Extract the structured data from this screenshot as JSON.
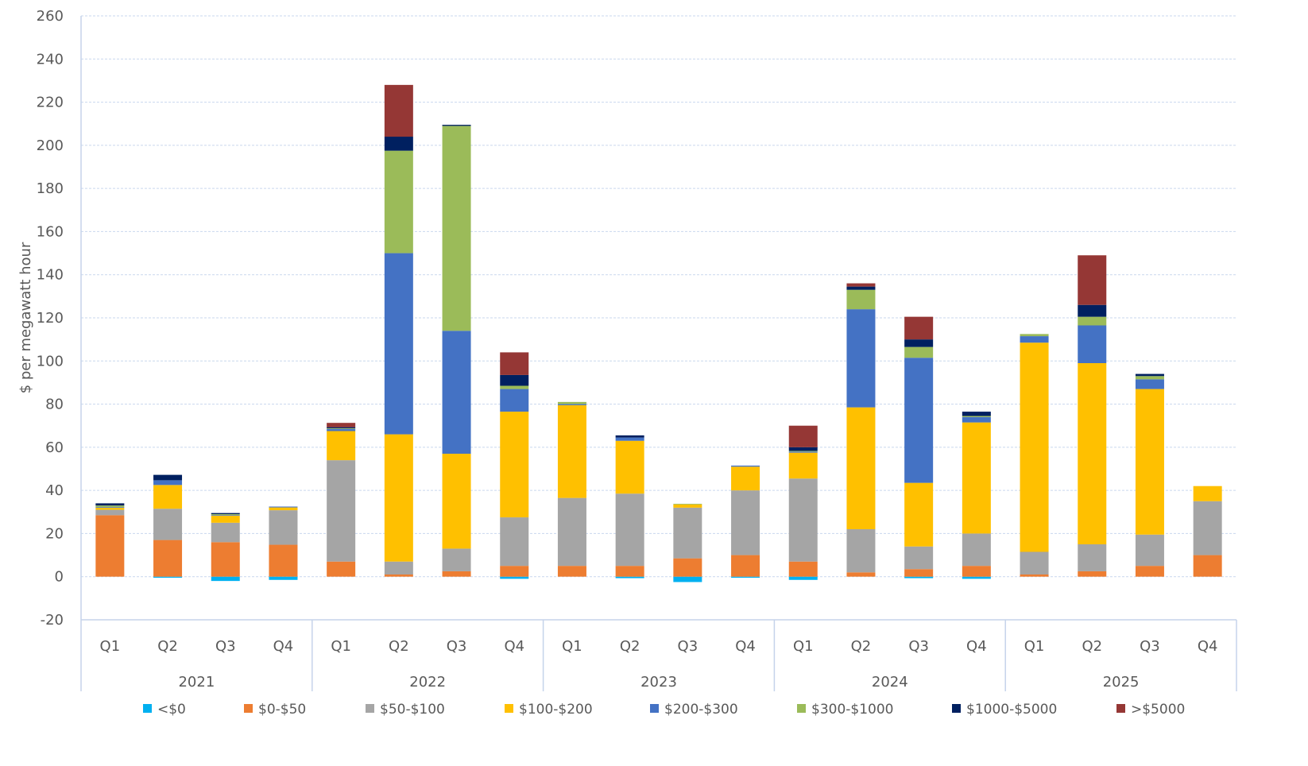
{
  "chart_data": {
    "type": "bar",
    "stacked": true,
    "title": "",
    "xlabel": "",
    "ylabel": "$ per megawatt hour",
    "ylim": [
      -20,
      260
    ],
    "yticks": [
      -20,
      0,
      20,
      40,
      60,
      80,
      100,
      120,
      140,
      160,
      180,
      200,
      220,
      240,
      260
    ],
    "grid": true,
    "legend_position": "bottom",
    "years": [
      "2021",
      "2022",
      "2023",
      "2024",
      "2025"
    ],
    "quarters": [
      "Q1",
      "Q2",
      "Q3",
      "Q4"
    ],
    "series": [
      {
        "name": "<$0",
        "color": "#00b0f0",
        "values": [
          0,
          -0.5,
          -2,
          -1.5,
          0,
          0,
          0,
          -1,
          0,
          -0.7,
          -2.5,
          -0.5,
          -1.5,
          0,
          -0.7,
          -1,
          0,
          0,
          0,
          0
        ]
      },
      {
        "name": "$0-$50",
        "color": "#ed7d31",
        "values": [
          28.5,
          17,
          16,
          14.8,
          7,
          1,
          2.5,
          5,
          5,
          5,
          8.5,
          10,
          7,
          2,
          3.5,
          5,
          1,
          2.5,
          5,
          10
        ]
      },
      {
        "name": "$50-$100",
        "color": "#a5a5a5",
        "values": [
          2.5,
          14.5,
          9,
          16,
          47,
          6,
          10.5,
          22.5,
          31.5,
          33.5,
          23.5,
          30,
          38.5,
          20,
          10.5,
          15,
          10.5,
          12.5,
          14.5,
          25
        ]
      },
      {
        "name": "$100-$200",
        "color": "#ffc000",
        "values": [
          1,
          11,
          3.3,
          1.3,
          13.5,
          59,
          44,
          49,
          43,
          24.5,
          1.5,
          11,
          12,
          56.5,
          29.5,
          51.5,
          97,
          84,
          67.5,
          7
        ]
      },
      {
        "name": "$200-$300",
        "color": "#4472c4",
        "values": [
          0.3,
          2.2,
          0.3,
          0.4,
          1,
          84,
          57,
          10.5,
          0.5,
          1.5,
          0,
          0.5,
          0.5,
          45.5,
          58,
          2.5,
          3,
          17.5,
          4.5,
          0
        ]
      },
      {
        "name": "$300-$1000",
        "color": "#9bbb59",
        "values": [
          0.7,
          0,
          0.4,
          0,
          0.3,
          47.5,
          95,
          1.5,
          1,
          0,
          0.3,
          0,
          0.3,
          9,
          5,
          0.5,
          1,
          4,
          1.5,
          0
        ]
      },
      {
        "name": "$1000-$5000",
        "color": "#002060",
        "values": [
          1,
          2.5,
          0.5,
          0,
          0.5,
          6.5,
          0.5,
          5,
          0,
          1,
          0,
          0,
          1.7,
          1.5,
          3.5,
          2,
          0,
          5.5,
          1,
          0
        ]
      },
      {
        "name": ">$5000",
        "color": "#953735",
        "values": [
          0,
          0,
          0,
          0,
          2,
          24,
          0,
          10.5,
          0,
          0,
          0,
          0,
          10,
          1.5,
          10.5,
          0,
          0,
          23,
          0,
          0
        ]
      }
    ]
  }
}
